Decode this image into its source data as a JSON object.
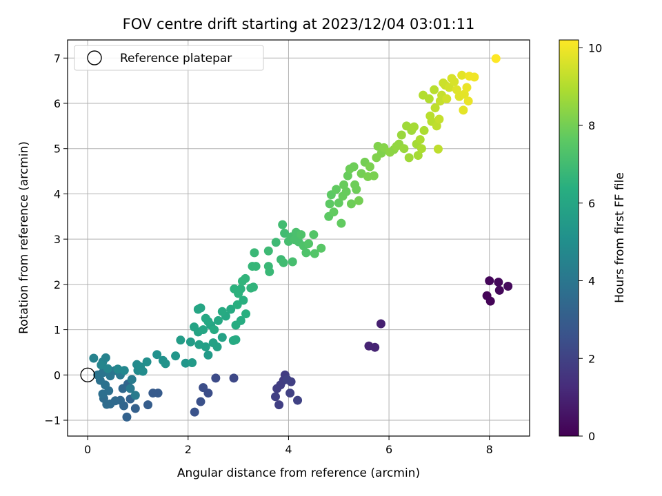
{
  "chart_data": {
    "type": "scatter",
    "title": "FOV centre drift starting at 2023/12/04 03:01:11",
    "xlabel": "Angular distance from reference (arcmin)",
    "ylabel": "Rotation from reference (arcmin)",
    "xlim": [
      -0.4,
      8.8
    ],
    "ylim": [
      -1.35,
      7.4
    ],
    "xticks": [
      0,
      2,
      4,
      6,
      8
    ],
    "yticks": [
      -1,
      0,
      1,
      2,
      3,
      4,
      5,
      6,
      7
    ],
    "grid": true,
    "legend": {
      "placement": "top-left",
      "entries": [
        {
          "label": "Reference platepar",
          "marker": "hollow-circle"
        }
      ]
    },
    "reference_point": {
      "x": 0,
      "y": 0
    },
    "colorbar": {
      "label": "Hours from first FF file",
      "colormap": "viridis",
      "range": [
        0,
        10.2
      ],
      "ticks": [
        0,
        2,
        4,
        6,
        8,
        10
      ]
    },
    "series": [
      {
        "colorscale_value_key": "hours",
        "points": [
          [
            7.95,
            1.75,
            0.1
          ],
          [
            8.02,
            1.63,
            0.1
          ],
          [
            8.0,
            2.08,
            0.15
          ],
          [
            8.18,
            2.05,
            0.2
          ],
          [
            8.2,
            1.87,
            0.2
          ],
          [
            8.37,
            1.96,
            0.25
          ],
          [
            5.84,
            1.13,
            0.9
          ],
          [
            5.6,
            0.64,
            1.0
          ],
          [
            5.72,
            0.61,
            1.0
          ],
          [
            3.93,
            0.0,
            1.8
          ],
          [
            3.9,
            -0.12,
            1.8
          ],
          [
            3.84,
            -0.22,
            1.85
          ],
          [
            3.77,
            -0.3,
            1.85
          ],
          [
            3.74,
            -0.48,
            1.9
          ],
          [
            3.81,
            -0.66,
            1.9
          ],
          [
            4.05,
            -0.15,
            1.9
          ],
          [
            4.03,
            -0.4,
            1.95
          ],
          [
            4.18,
            -0.56,
            2.0
          ],
          [
            3.97,
            -0.1,
            1.95
          ],
          [
            2.91,
            -0.07,
            2.2
          ],
          [
            2.55,
            -0.07,
            2.3
          ],
          [
            2.3,
            -0.28,
            2.4
          ],
          [
            2.4,
            -0.4,
            2.4
          ],
          [
            2.25,
            -0.59,
            2.5
          ],
          [
            2.13,
            -0.82,
            2.6
          ],
          [
            1.4,
            -0.4,
            2.9
          ],
          [
            1.3,
            -0.4,
            2.9
          ],
          [
            1.2,
            -0.66,
            3.0
          ],
          [
            0.95,
            -0.74,
            3.1
          ],
          [
            0.78,
            -0.93,
            3.2
          ],
          [
            0.85,
            -0.53,
            3.2
          ],
          [
            0.72,
            -0.68,
            3.3
          ],
          [
            0.8,
            -0.2,
            3.3
          ],
          [
            0.7,
            -0.3,
            3.4
          ],
          [
            0.65,
            -0.56,
            3.4
          ],
          [
            0.55,
            -0.57,
            3.5
          ],
          [
            0.45,
            -0.64,
            3.5
          ],
          [
            0.38,
            -0.65,
            3.6
          ],
          [
            0.32,
            -0.52,
            3.6
          ],
          [
            0.3,
            -0.42,
            3.7
          ],
          [
            0.42,
            -0.35,
            3.7
          ],
          [
            0.35,
            -0.22,
            3.8
          ],
          [
            0.25,
            -0.12,
            3.8
          ],
          [
            0.2,
            0.0,
            3.9
          ],
          [
            0.3,
            0.05,
            3.9
          ],
          [
            0.45,
            -0.02,
            4.0
          ],
          [
            0.55,
            0.1,
            4.0
          ],
          [
            0.65,
            0.0,
            4.1
          ],
          [
            0.85,
            -0.3,
            4.1
          ],
          [
            0.95,
            -0.45,
            4.2
          ],
          [
            0.88,
            -0.1,
            4.2
          ],
          [
            0.12,
            0.37,
            4.5
          ],
          [
            0.3,
            0.29,
            4.5
          ],
          [
            0.36,
            0.38,
            4.5
          ],
          [
            0.27,
            0.22,
            4.6
          ],
          [
            0.4,
            0.14,
            4.6
          ],
          [
            0.6,
            0.13,
            4.7
          ],
          [
            0.73,
            0.1,
            4.7
          ],
          [
            0.98,
            0.23,
            4.8
          ],
          [
            1.0,
            0.1,
            4.8
          ],
          [
            1.05,
            0.18,
            4.9
          ],
          [
            1.1,
            0.08,
            4.9
          ],
          [
            1.18,
            0.29,
            5.0
          ],
          [
            1.38,
            0.45,
            5.1
          ],
          [
            1.5,
            0.32,
            5.1
          ],
          [
            1.55,
            0.25,
            5.2
          ],
          [
            1.75,
            0.42,
            5.3
          ],
          [
            1.95,
            0.26,
            5.3
          ],
          [
            2.08,
            0.27,
            5.5
          ],
          [
            2.4,
            0.44,
            5.5
          ],
          [
            1.85,
            0.77,
            5.6
          ],
          [
            2.05,
            0.73,
            5.6
          ],
          [
            2.22,
            0.67,
            5.7
          ],
          [
            2.35,
            0.62,
            5.7
          ],
          [
            2.5,
            0.71,
            5.8
          ],
          [
            2.58,
            0.62,
            5.8
          ],
          [
            2.68,
            0.83,
            5.8
          ],
          [
            2.12,
            1.06,
            5.9
          ],
          [
            2.2,
            0.95,
            5.9
          ],
          [
            2.3,
            1.0,
            6.0
          ],
          [
            2.45,
            1.1,
            6.0
          ],
          [
            2.6,
            1.2,
            6.1
          ],
          [
            2.75,
            1.3,
            6.1
          ],
          [
            2.85,
            1.45,
            6.2
          ],
          [
            2.68,
            1.4,
            6.2
          ],
          [
            2.52,
            1.0,
            6.2
          ],
          [
            2.4,
            1.18,
            6.1
          ],
          [
            2.2,
            1.45,
            6.0
          ],
          [
            2.25,
            1.48,
            6.0
          ],
          [
            2.35,
            1.25,
            6.1
          ],
          [
            2.95,
            1.1,
            6.3
          ],
          [
            3.05,
            1.2,
            6.3
          ],
          [
            2.9,
            0.76,
            6.2
          ],
          [
            2.95,
            0.78,
            6.2
          ],
          [
            3.15,
            1.35,
            6.4
          ],
          [
            3.1,
            1.65,
            6.4
          ],
          [
            2.98,
            1.55,
            6.4
          ],
          [
            2.92,
            1.9,
            6.5
          ],
          [
            3.05,
            1.9,
            6.5
          ],
          [
            3.0,
            1.8,
            6.5
          ],
          [
            3.08,
            2.07,
            6.6
          ],
          [
            3.14,
            2.13,
            6.6
          ],
          [
            3.25,
            1.92,
            6.6
          ],
          [
            3.3,
            1.94,
            6.6
          ],
          [
            3.28,
            2.4,
            6.7
          ],
          [
            3.35,
            2.4,
            6.7
          ],
          [
            3.32,
            2.7,
            6.8
          ],
          [
            3.6,
            2.4,
            6.8
          ],
          [
            3.62,
            2.28,
            6.8
          ],
          [
            3.6,
            2.74,
            6.9
          ],
          [
            3.75,
            2.93,
            6.9
          ],
          [
            3.85,
            2.55,
            6.9
          ],
          [
            3.9,
            2.48,
            7.0
          ],
          [
            3.88,
            3.32,
            7.0
          ],
          [
            3.92,
            3.13,
            7.0
          ],
          [
            4.0,
            2.95,
            7.1
          ],
          [
            4.05,
            3.05,
            7.1
          ],
          [
            4.08,
            2.5,
            7.1
          ],
          [
            4.12,
            2.99,
            7.2
          ],
          [
            4.15,
            3.15,
            7.2
          ],
          [
            4.2,
            2.94,
            7.2
          ],
          [
            4.25,
            3.1,
            7.3
          ],
          [
            4.3,
            2.85,
            7.3
          ],
          [
            4.35,
            2.7,
            7.3
          ],
          [
            4.4,
            2.9,
            7.4
          ],
          [
            4.5,
            3.1,
            7.4
          ],
          [
            4.52,
            2.68,
            7.4
          ],
          [
            4.65,
            2.8,
            7.5
          ],
          [
            4.8,
            3.5,
            7.6
          ],
          [
            4.82,
            3.78,
            7.6
          ],
          [
            4.85,
            3.98,
            7.6
          ],
          [
            4.9,
            3.6,
            7.7
          ],
          [
            4.95,
            4.1,
            7.7
          ],
          [
            5.0,
            3.8,
            7.7
          ],
          [
            5.05,
            3.35,
            7.7
          ],
          [
            5.08,
            3.95,
            7.8
          ],
          [
            5.1,
            4.2,
            7.8
          ],
          [
            5.15,
            4.05,
            7.8
          ],
          [
            5.18,
            4.4,
            7.8
          ],
          [
            5.22,
            4.55,
            7.9
          ],
          [
            5.25,
            3.78,
            7.9
          ],
          [
            5.3,
            4.6,
            7.9
          ],
          [
            5.32,
            4.2,
            7.9
          ],
          [
            5.35,
            4.1,
            7.9
          ],
          [
            5.4,
            3.85,
            8.0
          ],
          [
            5.45,
            4.45,
            8.0
          ],
          [
            5.52,
            4.7,
            8.0
          ],
          [
            5.58,
            4.38,
            8.1
          ],
          [
            5.62,
            4.6,
            8.1
          ],
          [
            5.7,
            4.4,
            8.1
          ],
          [
            5.75,
            4.8,
            8.2
          ],
          [
            5.78,
            5.05,
            8.2
          ],
          [
            5.85,
            4.9,
            8.2
          ],
          [
            5.9,
            5.02,
            8.3
          ],
          [
            6.02,
            4.92,
            8.4
          ],
          [
            6.1,
            4.98,
            8.4
          ],
          [
            6.15,
            5.05,
            8.5
          ],
          [
            6.2,
            5.1,
            8.5
          ],
          [
            6.25,
            5.3,
            8.6
          ],
          [
            6.3,
            5.0,
            8.6
          ],
          [
            6.35,
            5.5,
            8.7
          ],
          [
            6.4,
            4.8,
            8.7
          ],
          [
            6.45,
            5.4,
            8.7
          ],
          [
            6.5,
            5.48,
            8.8
          ],
          [
            6.55,
            5.1,
            8.8
          ],
          [
            6.58,
            4.85,
            8.8
          ],
          [
            6.62,
            5.2,
            8.9
          ],
          [
            6.65,
            5.0,
            8.9
          ],
          [
            6.7,
            5.4,
            8.9
          ],
          [
            6.68,
            6.18,
            9.0
          ],
          [
            6.8,
            6.1,
            9.0
          ],
          [
            6.82,
            5.72,
            9.1
          ],
          [
            6.85,
            5.6,
            9.1
          ],
          [
            6.9,
            6.3,
            9.1
          ],
          [
            6.92,
            5.9,
            9.2
          ],
          [
            6.95,
            5.5,
            9.2
          ],
          [
            6.98,
            4.99,
            9.2
          ],
          [
            7.0,
            5.65,
            9.3
          ],
          [
            7.02,
            6.05,
            9.3
          ],
          [
            7.05,
            6.18,
            9.3
          ],
          [
            7.08,
            6.45,
            9.4
          ],
          [
            7.12,
            6.4,
            9.4
          ],
          [
            7.15,
            6.1,
            9.5
          ],
          [
            7.2,
            6.35,
            9.5
          ],
          [
            7.25,
            6.55,
            9.6
          ],
          [
            7.3,
            6.48,
            9.6
          ],
          [
            7.35,
            6.3,
            9.7
          ],
          [
            7.4,
            6.15,
            9.7
          ],
          [
            7.45,
            6.62,
            9.8
          ],
          [
            7.48,
            5.85,
            9.8
          ],
          [
            7.5,
            6.2,
            9.8
          ],
          [
            7.55,
            6.35,
            9.9
          ],
          [
            7.58,
            6.05,
            9.9
          ],
          [
            7.6,
            6.6,
            10.0
          ],
          [
            7.7,
            6.58,
            10.0
          ],
          [
            8.13,
            6.99,
            10.2
          ]
        ]
      }
    ]
  }
}
